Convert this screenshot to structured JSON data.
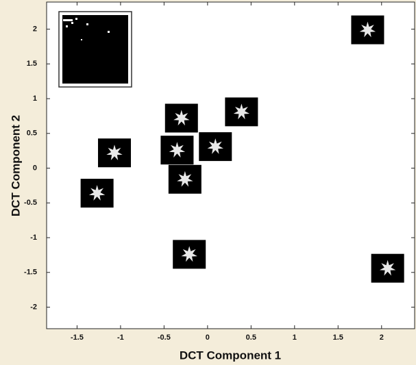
{
  "chart_data": {
    "type": "scatter",
    "x_label": "DCT Component 1",
    "y_label": "DCT Component 2",
    "x": [
      1.84,
      -0.3,
      0.39,
      -1.07,
      -0.35,
      0.09,
      -0.26,
      -1.27,
      -0.21,
      2.07
    ],
    "y": [
      1.99,
      0.72,
      0.81,
      0.22,
      0.26,
      0.31,
      -0.16,
      -0.36,
      -1.24,
      -1.44
    ],
    "xlim": [
      -1.85,
      2.38
    ],
    "ylim": [
      -2.31,
      2.39
    ],
    "xticks": [
      -1.5,
      -1,
      -0.5,
      0,
      0.5,
      1,
      1.5,
      2
    ],
    "yticks": [
      -2,
      -1.5,
      -1,
      -0.5,
      0,
      0.5,
      1,
      1.5,
      2
    ],
    "color": "#000000"
  }
}
